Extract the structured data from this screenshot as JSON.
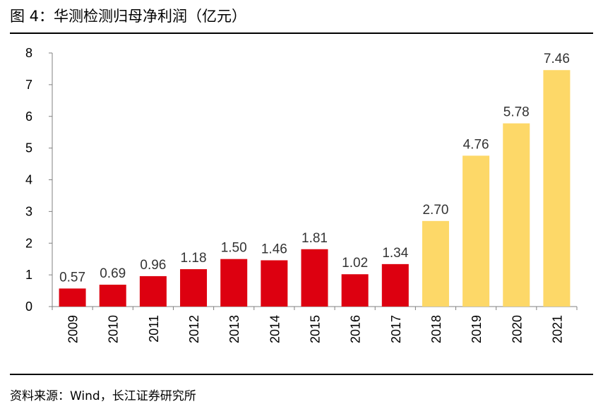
{
  "header": {
    "title": "图 4：华测检测归母净利润（亿元）"
  },
  "footer": {
    "source": "资料来源：Wind，长江证券研究所"
  },
  "colors": {
    "actual": "#dd0010",
    "forecast": "#fdd868",
    "axis": "#808080"
  },
  "chart_data": {
    "type": "bar",
    "title": "华测检测归母净利润（亿元）",
    "xlabel": "",
    "ylabel": "",
    "ylim": [
      0,
      8
    ],
    "yticks": [
      "0",
      "1",
      "2",
      "3",
      "4",
      "5",
      "6",
      "7",
      "8"
    ],
    "grid": false,
    "legend": "none",
    "categories": [
      "2009",
      "2010",
      "2011",
      "2012",
      "2013",
      "2014",
      "2015",
      "2016",
      "2017",
      "2018",
      "2019",
      "2020",
      "2021"
    ],
    "values": [
      0.57,
      0.69,
      0.96,
      1.18,
      1.5,
      1.46,
      1.81,
      1.02,
      1.34,
      2.7,
      4.76,
      5.78,
      7.46
    ],
    "labels": [
      "0.57",
      "0.69",
      "0.96",
      "1.18",
      "1.50",
      "1.46",
      "1.81",
      "1.02",
      "1.34",
      "2.70",
      "4.76",
      "5.78",
      "7.46"
    ],
    "bar_colors": [
      "actual",
      "actual",
      "actual",
      "actual",
      "actual",
      "actual",
      "actual",
      "actual",
      "actual",
      "forecast",
      "forecast",
      "forecast",
      "forecast"
    ]
  }
}
